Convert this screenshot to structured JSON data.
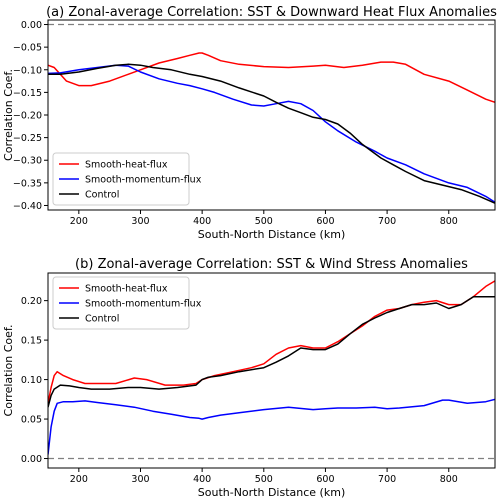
{
  "chart_data": [
    {
      "type": "line",
      "title": "(a) Zonal-average Correlation: SST & Downward Heat Flux Anomalies",
      "xlabel": "South-North Distance (km)",
      "ylabel": "Correlation Coef.",
      "xlim": [
        150,
        875
      ],
      "ylim": [
        -0.41,
        0.01
      ],
      "xticks": [
        200,
        300,
        400,
        500,
        600,
        700,
        800
      ],
      "yticks": [
        0.0,
        -0.05,
        -0.1,
        -0.15,
        -0.2,
        -0.25,
        -0.3,
        -0.35,
        -0.4
      ],
      "ytick_labels": [
        "0.00",
        "−0.05",
        "−0.10",
        "−0.15",
        "−0.20",
        "−0.25",
        "−0.30",
        "−0.35",
        "−0.40"
      ],
      "reference_line": 0.0,
      "grid": false,
      "legend_position": "lower-left",
      "series": [
        {
          "name": "Smooth-heat-flux",
          "color": "#ff0000",
          "x": [
            150,
            160,
            170,
            180,
            200,
            220,
            250,
            280,
            300,
            330,
            360,
            380,
            395,
            400,
            410,
            430,
            460,
            500,
            540,
            580,
            600,
            630,
            660,
            690,
            710,
            730,
            760,
            800,
            830,
            860,
            875
          ],
          "y": [
            -0.09,
            -0.095,
            -0.11,
            -0.125,
            -0.135,
            -0.135,
            -0.125,
            -0.11,
            -0.1,
            -0.085,
            -0.075,
            -0.068,
            -0.063,
            -0.063,
            -0.068,
            -0.08,
            -0.088,
            -0.093,
            -0.095,
            -0.092,
            -0.09,
            -0.095,
            -0.09,
            -0.083,
            -0.083,
            -0.088,
            -0.11,
            -0.125,
            -0.145,
            -0.165,
            -0.172
          ]
        },
        {
          "name": "Smooth-momentum-flux",
          "color": "#0000ff",
          "x": [
            150,
            170,
            200,
            230,
            260,
            280,
            300,
            330,
            360,
            380,
            400,
            420,
            450,
            480,
            500,
            520,
            540,
            560,
            580,
            600,
            620,
            650,
            680,
            700,
            730,
            760,
            800,
            830,
            860,
            875
          ],
          "y": [
            -0.108,
            -0.107,
            -0.1,
            -0.095,
            -0.09,
            -0.092,
            -0.105,
            -0.12,
            -0.13,
            -0.135,
            -0.142,
            -0.15,
            -0.165,
            -0.178,
            -0.18,
            -0.175,
            -0.17,
            -0.175,
            -0.19,
            -0.215,
            -0.235,
            -0.26,
            -0.28,
            -0.295,
            -0.31,
            -0.33,
            -0.35,
            -0.36,
            -0.38,
            -0.393
          ]
        },
        {
          "name": "Control",
          "color": "#000000",
          "x": [
            150,
            170,
            200,
            230,
            260,
            280,
            300,
            320,
            350,
            380,
            400,
            430,
            460,
            500,
            520,
            540,
            560,
            580,
            600,
            620,
            640,
            660,
            690,
            710,
            730,
            760,
            790,
            820,
            850,
            875
          ],
          "y": [
            -0.11,
            -0.11,
            -0.105,
            -0.097,
            -0.09,
            -0.088,
            -0.09,
            -0.095,
            -0.1,
            -0.11,
            -0.115,
            -0.125,
            -0.14,
            -0.158,
            -0.172,
            -0.185,
            -0.195,
            -0.205,
            -0.21,
            -0.22,
            -0.24,
            -0.265,
            -0.295,
            -0.31,
            -0.325,
            -0.345,
            -0.355,
            -0.365,
            -0.38,
            -0.395
          ]
        }
      ]
    },
    {
      "type": "line",
      "title": "(b) Zonal-average Correlation: SST & Wind Stress Anomalies",
      "xlabel": "South-North Distance (km)",
      "ylabel": "Correlation Coef.",
      "xlim": [
        150,
        875
      ],
      "ylim": [
        -0.012,
        0.235
      ],
      "xticks": [
        200,
        300,
        400,
        500,
        600,
        700,
        800
      ],
      "yticks": [
        0.0,
        0.05,
        0.1,
        0.15,
        0.2
      ],
      "ytick_labels": [
        "0.00",
        "0.05",
        "0.10",
        "0.15",
        "0.20"
      ],
      "reference_line": 0.0,
      "grid": false,
      "legend_position": "top-left",
      "series": [
        {
          "name": "Smooth-heat-flux",
          "color": "#ff0000",
          "x": [
            150,
            155,
            160,
            165,
            175,
            190,
            210,
            230,
            260,
            290,
            310,
            340,
            370,
            390,
            400,
            420,
            450,
            480,
            500,
            520,
            540,
            560,
            580,
            600,
            620,
            640,
            660,
            680,
            700,
            720,
            740,
            760,
            780,
            800,
            820,
            840,
            860,
            875
          ],
          "y": [
            0.07,
            0.09,
            0.105,
            0.11,
            0.105,
            0.1,
            0.095,
            0.095,
            0.095,
            0.102,
            0.1,
            0.093,
            0.093,
            0.095,
            0.1,
            0.105,
            0.11,
            0.115,
            0.12,
            0.132,
            0.14,
            0.143,
            0.14,
            0.14,
            0.148,
            0.158,
            0.168,
            0.18,
            0.188,
            0.19,
            0.195,
            0.198,
            0.2,
            0.195,
            0.195,
            0.205,
            0.218,
            0.225
          ]
        },
        {
          "name": "Smooth-momentum-flux",
          "color": "#0000ff",
          "x": [
            150,
            155,
            160,
            165,
            175,
            190,
            210,
            230,
            260,
            290,
            320,
            350,
            380,
            395,
            400,
            410,
            430,
            460,
            500,
            540,
            580,
            600,
            620,
            650,
            680,
            700,
            720,
            760,
            790,
            800,
            830,
            860,
            875
          ],
          "y": [
            0.005,
            0.04,
            0.06,
            0.07,
            0.072,
            0.072,
            0.073,
            0.071,
            0.068,
            0.065,
            0.06,
            0.056,
            0.052,
            0.051,
            0.05,
            0.052,
            0.055,
            0.058,
            0.062,
            0.065,
            0.062,
            0.063,
            0.064,
            0.064,
            0.065,
            0.063,
            0.064,
            0.067,
            0.074,
            0.074,
            0.07,
            0.072,
            0.075
          ]
        },
        {
          "name": "Control",
          "color": "#000000",
          "x": [
            150,
            155,
            160,
            170,
            185,
            200,
            220,
            250,
            280,
            300,
            330,
            360,
            390,
            400,
            410,
            430,
            460,
            500,
            520,
            540,
            560,
            580,
            600,
            620,
            640,
            660,
            680,
            700,
            720,
            740,
            760,
            780,
            800,
            820,
            840,
            860,
            875
          ],
          "y": [
            0.065,
            0.08,
            0.088,
            0.093,
            0.092,
            0.09,
            0.088,
            0.088,
            0.09,
            0.09,
            0.088,
            0.09,
            0.093,
            0.1,
            0.103,
            0.105,
            0.11,
            0.115,
            0.122,
            0.13,
            0.14,
            0.138,
            0.138,
            0.145,
            0.158,
            0.17,
            0.178,
            0.185,
            0.19,
            0.195,
            0.195,
            0.197,
            0.19,
            0.195,
            0.205,
            0.205,
            0.205
          ]
        }
      ]
    }
  ]
}
